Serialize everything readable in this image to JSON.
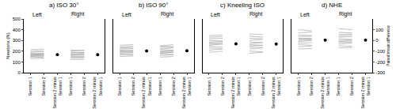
{
  "chart_data": [
    {
      "type": "line",
      "title": "a) ISO 30°",
      "ylabel": "Newtons (N)",
      "categories": [
        "Session 1",
        "Session 2",
        "Session 2 minus Session 1",
        "Session 1",
        "Session 2",
        "Session 2 minus Session 1"
      ],
      "ylim": [
        0,
        500
      ],
      "yticks": [
        0,
        100,
        200,
        300,
        400,
        500
      ],
      "y2lim": [
        -165,
        335
      ],
      "series": [
        {
          "name": "Left",
          "color": "#a6a6a6",
          "session1": [
            130,
            145,
            150,
            155,
            160,
            165,
            170,
            175,
            180,
            190,
            200,
            215
          ],
          "session2": [
            135,
            150,
            140,
            160,
            170,
            160,
            175,
            180,
            170,
            195,
            205,
            220
          ],
          "mean_difference": 2,
          "ci": [
            -4,
            8
          ]
        },
        {
          "name": "Right",
          "color": "#a6a6a6",
          "session1": [
            120,
            135,
            145,
            150,
            160,
            165,
            170,
            175,
            185,
            190,
            200,
            210
          ],
          "session2": [
            125,
            140,
            150,
            145,
            165,
            170,
            165,
            180,
            190,
            185,
            210,
            205
          ],
          "mean_difference": 2,
          "ci": [
            -3,
            7
          ]
        }
      ]
    },
    {
      "type": "line",
      "title": "b) ISO 90°",
      "categories": [
        "Session 1",
        "Session 2",
        "Session 2 minus Session 1",
        "Session 1",
        "Session 2",
        "Session 2 minus Session 1"
      ],
      "ylim": [
        0,
        500
      ],
      "y2lim": [
        -200,
        300
      ],
      "series": [
        {
          "name": "Left",
          "color": "#a6a6a6",
          "session1": [
            150,
            165,
            170,
            180,
            190,
            195,
            200,
            210,
            220,
            230,
            240,
            255
          ],
          "session2": [
            155,
            170,
            165,
            185,
            195,
            190,
            210,
            205,
            225,
            235,
            245,
            260
          ],
          "mean_difference": 3,
          "ci": [
            -3,
            9
          ]
        },
        {
          "name": "Right",
          "color": "#a6a6a6",
          "session1": [
            145,
            160,
            175,
            180,
            185,
            195,
            200,
            215,
            220,
            235,
            245,
            250
          ],
          "session2": [
            150,
            165,
            170,
            190,
            190,
            200,
            205,
            210,
            230,
            240,
            240,
            260
          ],
          "mean_difference": 4,
          "ci": [
            -2,
            10
          ]
        }
      ]
    },
    {
      "type": "line",
      "title": "c) Kneeling ISO",
      "categories": [
        "Session 1",
        "Session 2",
        "Session 2 minus Session 1",
        "Session 1",
        "Session 2",
        "Session 2 minus Session 1"
      ],
      "ylim": [
        0,
        500
      ],
      "y2lim": [
        -265,
        235
      ],
      "series": [
        {
          "name": "Left",
          "color": "#a6a6a6",
          "session1": [
            190,
            210,
            230,
            245,
            255,
            265,
            275,
            285,
            300,
            315,
            330,
            345
          ],
          "session2": [
            200,
            220,
            225,
            240,
            265,
            270,
            280,
            290,
            295,
            320,
            335,
            350
          ],
          "mean_difference": 3,
          "ci": [
            -6,
            12
          ]
        },
        {
          "name": "Right",
          "color": "#a6a6a6",
          "session1": [
            180,
            200,
            220,
            240,
            250,
            260,
            270,
            285,
            300,
            320,
            340,
            360
          ],
          "session2": [
            190,
            195,
            230,
            235,
            255,
            255,
            280,
            280,
            310,
            315,
            330,
            355
          ],
          "mean_difference": 1,
          "ci": [
            -8,
            10
          ]
        }
      ]
    },
    {
      "type": "line",
      "title": "d) NHE",
      "y2label": "Paired mean difference",
      "categories": [
        "Session 1",
        "Session 2",
        "Session 2 minus Session 1",
        "Session 1",
        "Session 2",
        "Session 2 minus Session 1"
      ],
      "ylim": [
        0,
        500
      ],
      "y2lim": [
        -300,
        200
      ],
      "y2ticks": [
        -300,
        -200,
        -100,
        0,
        100
      ],
      "series": [
        {
          "name": "Left",
          "color": "#a6a6a6",
          "session1": [
            220,
            240,
            260,
            275,
            290,
            300,
            310,
            320,
            335,
            350,
            370,
            400
          ],
          "session2": [
            225,
            250,
            255,
            280,
            300,
            305,
            315,
            320,
            340,
            345,
            380,
            390
          ],
          "mean_difference": 3,
          "ci": [
            -6,
            12
          ]
        },
        {
          "name": "Right",
          "color": "#a6a6a6",
          "session1": [
            230,
            250,
            265,
            280,
            290,
            300,
            315,
            330,
            340,
            355,
            375,
            410
          ],
          "session2": [
            235,
            245,
            275,
            285,
            295,
            305,
            310,
            335,
            350,
            360,
            370,
            400
          ],
          "mean_difference": 3,
          "ci": [
            -5,
            11
          ]
        }
      ]
    }
  ]
}
